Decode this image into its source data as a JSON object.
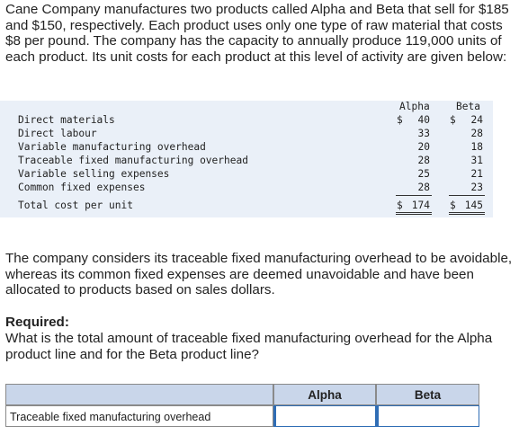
{
  "intro": "Cane Company manufactures two products called Alpha and Beta that sell for $185 and $150, respectively. Each product uses only one type of raw material that costs $8 per pound. The company has the capacity to annually produce 119,000 units of each product. Its unit costs for each product at this level of activity are given below:",
  "cost_table": {
    "headers": {
      "alpha": "Alpha",
      "beta": "Beta"
    },
    "currency": "$",
    "rows": [
      {
        "label": "Direct materials",
        "alpha": "40",
        "beta": "24"
      },
      {
        "label": "Direct labour",
        "alpha": "33",
        "beta": "28"
      },
      {
        "label": "Variable manufacturing overhead",
        "alpha": "20",
        "beta": "18"
      },
      {
        "label": "Traceable fixed manufacturing overhead",
        "alpha": "28",
        "beta": "31"
      },
      {
        "label": "Variable selling expenses",
        "alpha": "25",
        "beta": "21"
      },
      {
        "label": "Common fixed expenses",
        "alpha": "28",
        "beta": "23"
      }
    ],
    "total": {
      "label": "Total cost per unit",
      "alpha": "174",
      "beta": "145"
    }
  },
  "note": "The company considers its traceable fixed manufacturing overhead to be avoidable, whereas its common fixed expenses are deemed unavoidable and have been allocated to products based on sales dollars.",
  "required_label": "Required:",
  "question": "What is the total amount of traceable fixed manufacturing overhead for the Alpha product line and for the Beta product line?",
  "answer_grid": {
    "col_alpha": "Alpha",
    "col_beta": "Beta",
    "row_label": "Traceable fixed manufacturing overhead",
    "alpha_value": "",
    "beta_value": ""
  }
}
